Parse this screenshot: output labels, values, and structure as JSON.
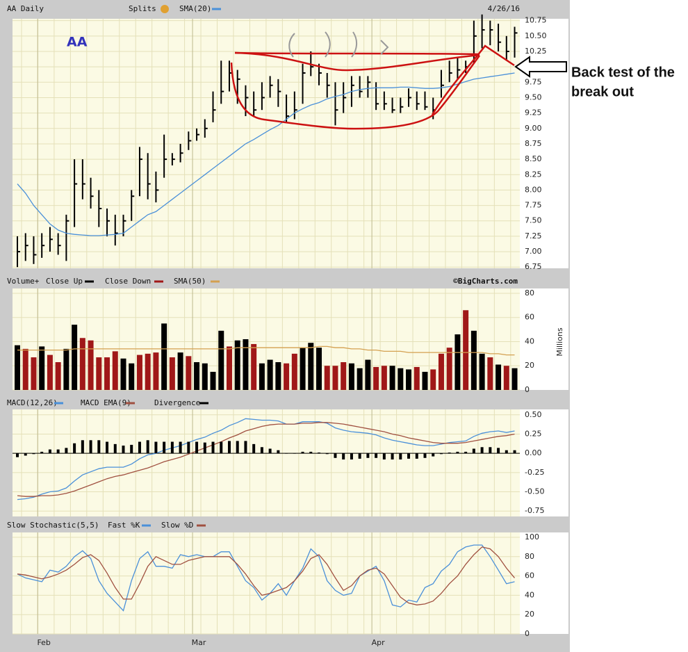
{
  "chart_data": [
    {
      "type": "ohlc",
      "title": "AA Daily",
      "label": "AA",
      "splits_label": "Splits",
      "date": "4/26/16",
      "annotation": [
        "Back test of the",
        "break out"
      ],
      "high": [
        7.25,
        7.3,
        7.25,
        7.3,
        7.4,
        7.3,
        7.6,
        8.5,
        8.5,
        8.2,
        8.0,
        7.7,
        7.6,
        7.6,
        8.0,
        8.7,
        8.6,
        8.3,
        8.9,
        8.6,
        8.75,
        8.95,
        9.0,
        9.15,
        9.6,
        10.1,
        10.1,
        9.95,
        9.7,
        9.6,
        9.75,
        9.85,
        9.8,
        9.55,
        9.6,
        10.05,
        10.25,
        10.05,
        9.9,
        9.75,
        9.75,
        9.85,
        9.85,
        9.85,
        9.75,
        9.6,
        9.5,
        9.5,
        9.65,
        9.6,
        9.6,
        9.5,
        9.95,
        10.1,
        10.15,
        10.1,
        10.75,
        10.85,
        10.75,
        10.7,
        10.5,
        10.65
      ],
      "low": [
        6.75,
        6.85,
        6.8,
        6.9,
        7.0,
        6.95,
        6.85,
        7.4,
        7.85,
        7.7,
        7.4,
        7.25,
        7.1,
        7.25,
        7.5,
        7.9,
        7.85,
        7.8,
        8.2,
        8.4,
        8.45,
        8.65,
        8.8,
        8.85,
        9.1,
        9.4,
        9.6,
        9.4,
        9.2,
        9.2,
        9.3,
        9.5,
        9.35,
        9.1,
        9.15,
        9.4,
        9.85,
        9.7,
        9.5,
        9.05,
        9.25,
        9.35,
        9.5,
        9.5,
        9.3,
        9.3,
        9.25,
        9.25,
        9.35,
        9.3,
        9.3,
        9.15,
        9.5,
        9.75,
        9.8,
        9.9,
        10.05,
        10.3,
        10.35,
        10.25,
        10.1,
        10.15
      ],
      "close": [
        7.0,
        7.1,
        6.95,
        7.1,
        7.2,
        7.1,
        7.5,
        8.1,
        8.1,
        7.9,
        7.7,
        7.5,
        7.3,
        7.5,
        7.9,
        8.5,
        8.1,
        8.0,
        8.5,
        8.5,
        8.6,
        8.8,
        8.9,
        9.0,
        9.3,
        9.6,
        9.9,
        9.8,
        9.5,
        9.3,
        9.5,
        9.7,
        9.6,
        9.2,
        9.3,
        9.9,
        10.0,
        9.9,
        9.7,
        9.3,
        9.5,
        9.7,
        9.6,
        9.75,
        9.4,
        9.4,
        9.3,
        9.35,
        9.5,
        9.4,
        9.35,
        9.3,
        9.7,
        9.9,
        9.95,
        10.0,
        10.5,
        10.6,
        10.6,
        10.4,
        10.25,
        10.55
      ],
      "bar_color": "#000000",
      "series": [
        {
          "name": "SMA(20)",
          "color": "#4a90d9",
          "values": [
            8.1,
            7.95,
            7.75,
            7.6,
            7.45,
            7.35,
            7.3,
            7.28,
            7.27,
            7.26,
            7.26,
            7.27,
            7.28,
            7.3,
            7.4,
            7.5,
            7.6,
            7.65,
            7.75,
            7.85,
            7.95,
            8.05,
            8.15,
            8.25,
            8.35,
            8.45,
            8.55,
            8.65,
            8.75,
            8.82,
            8.9,
            8.98,
            9.05,
            9.15,
            9.25,
            9.32,
            9.38,
            9.42,
            9.48,
            9.52,
            9.55,
            9.6,
            9.63,
            9.65,
            9.66,
            9.66,
            9.66,
            9.67,
            9.67,
            9.66,
            9.65,
            9.65,
            9.66,
            9.68,
            9.72,
            9.76,
            9.8,
            9.82,
            9.84,
            9.86,
            9.88,
            9.9
          ]
        }
      ],
      "ylim": [
        6.73,
        10.78
      ],
      "yticks": [
        6.75,
        {
          "value": 7,
          "label": "7.00"
        },
        7.25,
        {
          "value": 7.5,
          "label": "7.50"
        },
        7.75,
        {
          "value": 8,
          "label": "8.00"
        },
        8.25,
        {
          "value": 8.5,
          "label": "8.50"
        },
        8.75,
        {
          "value": 9,
          "label": "9.00"
        },
        9.25,
        {
          "value": 9.5,
          "label": "9.50"
        },
        9.75,
        {
          "value": 10,
          "label": "10.00"
        },
        10.25,
        {
          "value": 10.5,
          "label": "10.50"
        },
        10.75
      ],
      "grid": true
    },
    {
      "type": "bar",
      "title": "Volume+",
      "credit": "©BigCharts.com",
      "ylabel": "Millions",
      "series": [
        {
          "name": "Close Up",
          "color": "#000000",
          "type": "bar",
          "values": [
            37,
            null,
            null,
            36,
            null,
            null,
            34,
            54,
            null,
            null,
            null,
            null,
            null,
            26,
            22,
            null,
            null,
            null,
            55,
            null,
            31,
            null,
            23,
            22,
            15,
            49,
            null,
            41,
            42,
            null,
            22,
            25,
            23,
            null,
            null,
            35,
            39,
            35,
            null,
            null,
            null,
            22,
            18,
            25,
            null,
            null,
            20,
            18,
            17,
            null,
            15,
            null,
            null,
            null,
            46,
            null,
            49,
            30,
            null,
            21,
            null,
            18
          ]
        },
        {
          "name": "Close Down",
          "color": "#a01818",
          "type": "bar",
          "values": [
            null,
            34,
            27,
            null,
            29,
            23,
            null,
            null,
            43,
            41,
            27,
            27,
            32,
            null,
            null,
            29,
            30,
            31,
            null,
            27,
            null,
            28,
            null,
            null,
            null,
            null,
            36,
            null,
            null,
            38,
            null,
            null,
            null,
            22,
            30,
            null,
            null,
            null,
            20,
            20,
            23,
            null,
            null,
            null,
            19,
            20,
            null,
            null,
            null,
            19,
            null,
            17,
            30,
            35,
            null,
            66,
            null,
            null,
            27,
            null,
            20,
            null
          ]
        },
        {
          "name": "SMA(50)",
          "color": "#d4a050",
          "type": "line",
          "values": [
            33,
            33,
            33,
            33,
            33,
            33,
            33,
            34,
            34,
            34,
            34,
            34,
            34,
            34,
            34,
            34,
            34,
            34,
            34,
            34,
            34,
            34,
            34,
            34,
            34,
            34,
            34,
            35,
            35,
            35,
            35,
            35,
            35,
            35,
            35,
            35,
            35,
            36,
            36,
            35,
            35,
            34,
            34,
            33,
            33,
            32,
            32,
            32,
            31,
            31,
            31,
            31,
            31,
            31,
            31,
            31,
            31,
            31,
            30,
            30,
            29,
            29
          ]
        }
      ],
      "ylim": [
        0,
        84
      ],
      "yticks": [
        0,
        20,
        40,
        60,
        80
      ],
      "grid": true
    },
    {
      "type": "macd",
      "series": [
        {
          "name": "MACD(12,26)",
          "color": "#4a90d9",
          "type": "line",
          "values": [
            -0.6,
            -0.59,
            -0.57,
            -0.53,
            -0.5,
            -0.49,
            -0.45,
            -0.36,
            -0.28,
            -0.24,
            -0.2,
            -0.18,
            -0.18,
            -0.18,
            -0.14,
            -0.07,
            -0.02,
            0.0,
            0.04,
            0.07,
            0.1,
            0.14,
            0.18,
            0.21,
            0.26,
            0.3,
            0.36,
            0.4,
            0.45,
            0.44,
            0.43,
            0.43,
            0.42,
            0.38,
            0.38,
            0.41,
            0.41,
            0.41,
            0.39,
            0.33,
            0.3,
            0.28,
            0.27,
            0.26,
            0.24,
            0.2,
            0.17,
            0.15,
            0.13,
            0.11,
            0.1,
            0.1,
            0.12,
            0.14,
            0.15,
            0.16,
            0.22,
            0.26,
            0.28,
            0.29,
            0.27,
            0.29
          ]
        },
        {
          "name": "MACD EMA(9)",
          "color": "#a05040",
          "type": "line",
          "values": [
            -0.55,
            -0.56,
            -0.56,
            -0.55,
            -0.55,
            -0.54,
            -0.52,
            -0.49,
            -0.45,
            -0.41,
            -0.37,
            -0.33,
            -0.3,
            -0.28,
            -0.25,
            -0.22,
            -0.19,
            -0.15,
            -0.11,
            -0.08,
            -0.05,
            -0.01,
            0.03,
            0.07,
            0.11,
            0.15,
            0.2,
            0.24,
            0.29,
            0.32,
            0.35,
            0.37,
            0.38,
            0.38,
            0.38,
            0.39,
            0.39,
            0.4,
            0.4,
            0.39,
            0.38,
            0.36,
            0.34,
            0.32,
            0.3,
            0.28,
            0.25,
            0.23,
            0.2,
            0.18,
            0.16,
            0.14,
            0.13,
            0.13,
            0.13,
            0.14,
            0.16,
            0.18,
            0.2,
            0.22,
            0.23,
            0.25
          ]
        },
        {
          "name": "Divergence",
          "color": "#000000",
          "type": "bar",
          "values": [
            -0.05,
            -0.03,
            -0.01,
            0.02,
            0.05,
            0.05,
            0.07,
            0.13,
            0.17,
            0.17,
            0.17,
            0.15,
            0.12,
            0.1,
            0.11,
            0.15,
            0.17,
            0.15,
            0.15,
            0.15,
            0.15,
            0.15,
            0.15,
            0.14,
            0.15,
            0.15,
            0.16,
            0.16,
            0.16,
            0.12,
            0.08,
            0.06,
            0.04,
            0.0,
            0.0,
            0.02,
            0.02,
            0.01,
            -0.01,
            -0.06,
            -0.08,
            -0.08,
            -0.07,
            -0.06,
            -0.06,
            -0.08,
            -0.08,
            -0.08,
            -0.07,
            -0.07,
            -0.06,
            -0.04,
            -0.01,
            0.01,
            0.02,
            0.02,
            0.06,
            0.08,
            0.08,
            0.07,
            0.04,
            0.04
          ]
        }
      ],
      "ylim": [
        -0.82,
        0.57
      ],
      "yticks": [
        {
          "value": 0.5,
          "label": "0.50"
        },
        0.25,
        {
          "value": 0,
          "label": "0.00"
        },
        -0.25,
        {
          "value": -0.5,
          "label": "-0.50"
        },
        -0.75
      ],
      "grid": true
    },
    {
      "type": "line",
      "title": "Slow Stochastic(5,5)",
      "categories": [
        null,
        null,
        null,
        "Feb",
        null,
        null,
        null,
        null,
        null,
        null,
        null,
        null,
        null,
        null,
        null,
        null,
        null,
        null,
        null,
        null,
        null,
        null,
        "Mar",
        null,
        null,
        null,
        null,
        null,
        null,
        null,
        null,
        null,
        null,
        null,
        null,
        null,
        null,
        null,
        null,
        null,
        null,
        null,
        null,
        null,
        "Apr",
        null,
        null,
        null,
        null,
        null,
        null,
        null,
        null,
        null,
        null,
        null,
        null,
        null,
        null,
        null,
        null,
        null
      ],
      "series": [
        {
          "name": "Fast %K",
          "color": "#4a90d9",
          "values": [
            62,
            58,
            56,
            54,
            66,
            64,
            70,
            80,
            86,
            78,
            55,
            42,
            33,
            24,
            55,
            78,
            85,
            70,
            70,
            68,
            82,
            80,
            82,
            80,
            80,
            85,
            85,
            70,
            55,
            48,
            35,
            42,
            52,
            40,
            55,
            68,
            88,
            80,
            55,
            45,
            40,
            42,
            60,
            65,
            70,
            55,
            30,
            28,
            35,
            33,
            48,
            52,
            65,
            72,
            85,
            90,
            92,
            92,
            80,
            66,
            52,
            54
          ]
        },
        {
          "name": "Slow %D",
          "color": "#a05040",
          "values": [
            62,
            61,
            59,
            57,
            59,
            62,
            66,
            72,
            79,
            82,
            76,
            63,
            48,
            36,
            36,
            52,
            70,
            80,
            76,
            72,
            72,
            76,
            78,
            80,
            80,
            80,
            80,
            72,
            62,
            50,
            40,
            42,
            45,
            48,
            55,
            65,
            78,
            82,
            72,
            58,
            45,
            50,
            60,
            66,
            68,
            62,
            50,
            38,
            32,
            30,
            31,
            34,
            42,
            52,
            60,
            72,
            82,
            90,
            88,
            80,
            68,
            58
          ]
        }
      ],
      "ylim": [
        0,
        105
      ],
      "yticks": [
        0,
        20,
        40,
        60,
        80,
        100
      ],
      "grid": true
    }
  ]
}
